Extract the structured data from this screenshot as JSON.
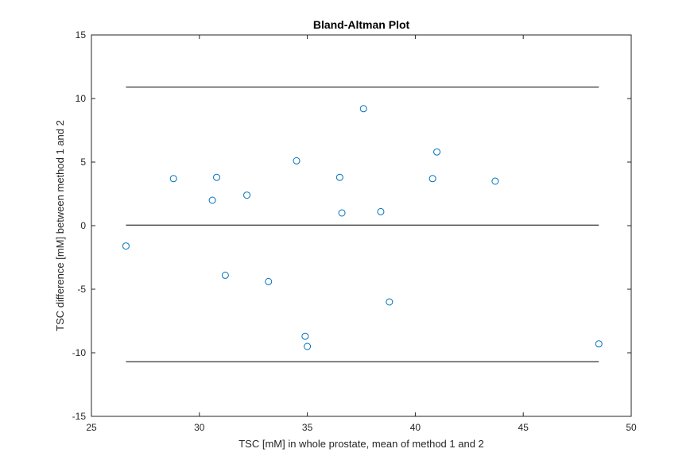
{
  "chart_data": {
    "type": "scatter",
    "title": "Bland-Altman Plot",
    "xlabel": "TSC [mM] in whole prostate, mean of method 1 and 2",
    "ylabel": "TSC difference [mM] between method 1 and 2",
    "xlim": [
      25,
      50
    ],
    "ylim": [
      -15,
      15
    ],
    "xticks": [
      25,
      30,
      35,
      40,
      45,
      50
    ],
    "yticks": [
      -15,
      -10,
      -5,
      0,
      5,
      10,
      15
    ],
    "xtick_labels": [
      "25",
      "30",
      "35",
      "40",
      "45",
      "50"
    ],
    "ytick_labels": [
      "-15",
      "-10",
      "-5",
      "0",
      "5",
      "10",
      "15"
    ],
    "grid": false,
    "marker": "open-circle",
    "marker_color": "#0072bd",
    "line_color": "#000000",
    "reference_lines": [
      {
        "y": 10.9,
        "x_from": 26.6,
        "x_to": 48.5
      },
      {
        "y": 0.05,
        "x_from": 26.6,
        "x_to": 48.5
      },
      {
        "y": -10.7,
        "x_from": 26.6,
        "x_to": 48.5
      }
    ],
    "series": [
      {
        "x": [
          26.6,
          28.8,
          30.6,
          30.8,
          31.2,
          32.2,
          33.2,
          34.5,
          34.9,
          35.0,
          36.5,
          36.6,
          37.6,
          38.4,
          38.8,
          40.8,
          41.0,
          43.7,
          48.5
        ],
        "y": [
          -1.6,
          3.7,
          2.0,
          3.8,
          -3.9,
          2.4,
          -4.4,
          5.1,
          -8.7,
          -9.5,
          3.8,
          1.0,
          9.2,
          1.1,
          -6.0,
          3.7,
          5.8,
          3.5,
          -9.3
        ]
      }
    ]
  }
}
